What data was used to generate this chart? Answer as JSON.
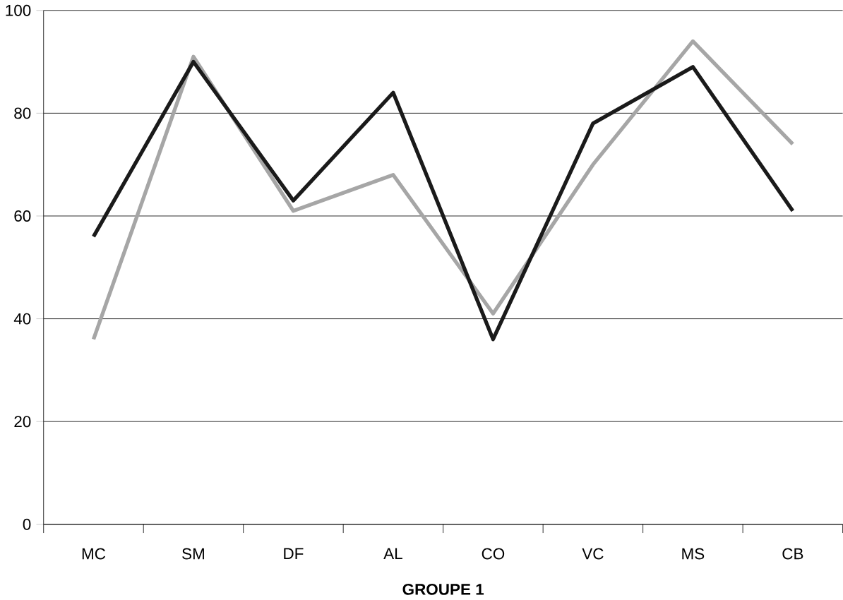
{
  "chart_data": {
    "type": "line",
    "xlabel": "**GROUPE 1**",
    "categories": [
      "MC",
      "SM",
      "DF",
      "AL",
      "CO",
      "VC",
      "MS",
      "CB"
    ],
    "series": [
      {
        "color": "#a6a6a6",
        "values": [
          36,
          91,
          61,
          68,
          41,
          70,
          94,
          74
        ]
      },
      {
        "color": "#1a1a1a",
        "values": [
          56,
          90,
          63,
          84,
          36,
          78,
          89,
          61
        ]
      }
    ],
    "ylim": [
      0,
      100
    ],
    "yticks": [
      0,
      20,
      40,
      60,
      80,
      100
    ],
    "grid": "y",
    "marker": "none",
    "line_style": "solid"
  }
}
